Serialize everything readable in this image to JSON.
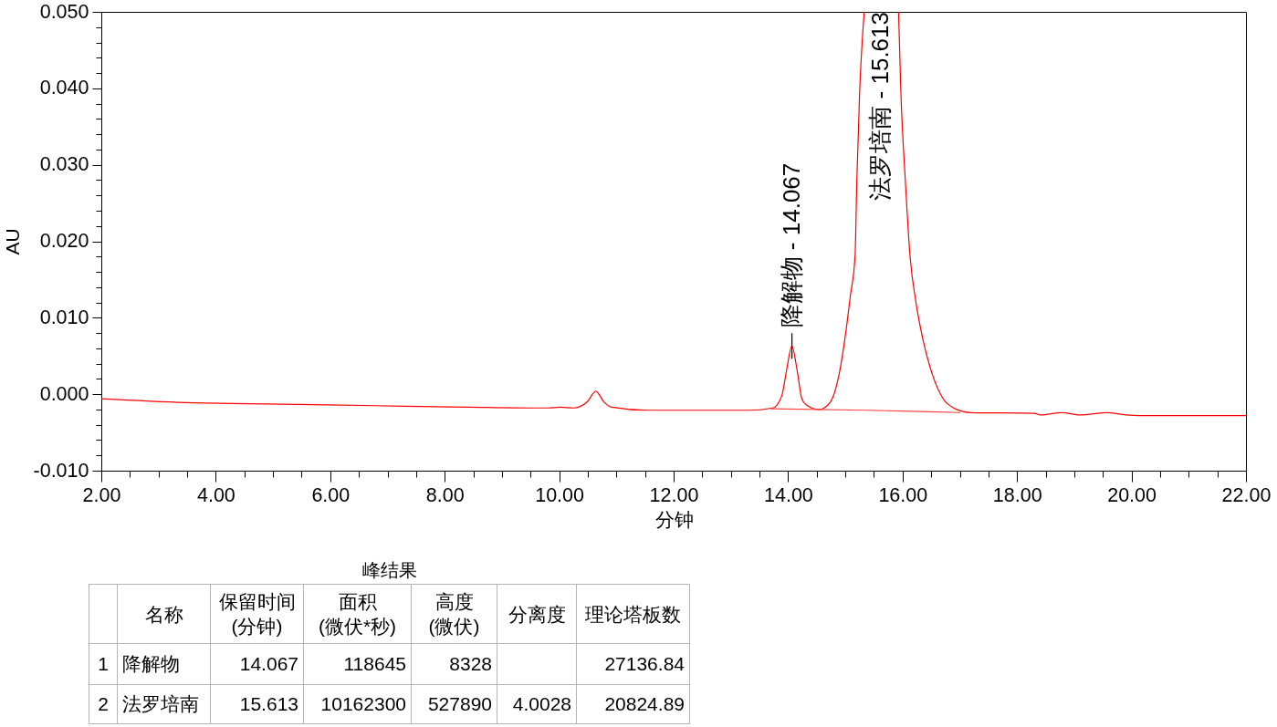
{
  "chart_data": [
    {
      "type": "line",
      "xlabel": "分钟",
      "ylabel": "AU",
      "x": [
        2.0,
        3.47,
        5.13,
        6.77,
        8.43,
        9.53,
        9.8,
        10.02,
        10.25,
        10.49,
        10.64,
        10.78,
        10.92,
        11.55,
        12.46,
        13.31,
        13.73,
        13.89,
        13.97,
        14.067,
        14.16,
        14.24,
        14.32,
        14.54,
        14.74,
        14.88,
        15.01,
        15.09,
        15.17,
        15.2,
        15.25,
        15.3,
        15.33,
        15.613,
        15.93,
        15.97,
        16.05,
        16.13,
        16.23,
        16.36,
        16.52,
        16.71,
        16.92,
        17.19,
        18.3,
        18.41,
        18.78,
        19.1,
        19.58,
        19.9,
        20.33,
        22.0
      ],
      "series": [
        {
          "color": "#ff0000",
          "values": [
            -0.0006,
            -0.0011,
            -0.0013,
            -0.0015,
            -0.0017,
            -0.0018,
            -0.0018,
            -0.0017,
            -0.0018,
            -0.001,
            0.0004,
            -0.001,
            -0.0017,
            -0.0021,
            -0.0021,
            -0.0021,
            -0.0018,
            -0.0002,
            0.003,
            0.0063,
            0.003,
            -0.0006,
            -0.0014,
            -0.002,
            -0.001,
            0.0022,
            0.0082,
            0.013,
            0.0181,
            0.0277,
            0.0396,
            0.0468,
            0.05,
            null,
            0.05,
            0.0396,
            0.0277,
            0.0181,
            0.0122,
            0.007,
            0.0026,
            -0.0006,
            -0.0019,
            -0.0024,
            -0.0025,
            -0.0027,
            -0.0024,
            -0.0027,
            -0.0024,
            -0.0027,
            -0.0028,
            -0.0028
          ]
        },
        {
          "type": "line",
          "color": "#ff4040",
          "x": [
            13.7,
            15.38,
            17.0
          ],
          "values": [
            -0.0019,
            -0.0021,
            -0.0024
          ]
        }
      ],
      "xlim": [
        2,
        22
      ],
      "xticks": [
        {
          "value": 2,
          "label": "2.00"
        },
        {
          "value": 2.5,
          "label": null
        },
        {
          "value": 3,
          "label": null
        },
        {
          "value": 3.5,
          "label": null
        },
        {
          "value": 4,
          "label": "4.00"
        },
        {
          "value": 4.5,
          "label": null
        },
        {
          "value": 5,
          "label": null
        },
        {
          "value": 5.5,
          "label": null
        },
        {
          "value": 6,
          "label": "6.00"
        },
        {
          "value": 6.5,
          "label": null
        },
        {
          "value": 7,
          "label": null
        },
        {
          "value": 7.5,
          "label": null
        },
        {
          "value": 8,
          "label": "8.00"
        },
        {
          "value": 8.5,
          "label": null
        },
        {
          "value": 9,
          "label": null
        },
        {
          "value": 9.5,
          "label": null
        },
        {
          "value": 10,
          "label": "10.00"
        },
        {
          "value": 10.5,
          "label": null
        },
        {
          "value": 11,
          "label": null
        },
        {
          "value": 11.5,
          "label": null
        },
        {
          "value": 12,
          "label": "12.00"
        },
        {
          "value": 12.5,
          "label": null
        },
        {
          "value": 13,
          "label": null
        },
        {
          "value": 13.5,
          "label": null
        },
        {
          "value": 14,
          "label": "14.00"
        },
        {
          "value": 14.5,
          "label": null
        },
        {
          "value": 15,
          "label": null
        },
        {
          "value": 15.5,
          "label": null
        },
        {
          "value": 16,
          "label": "16.00"
        },
        {
          "value": 16.5,
          "label": null
        },
        {
          "value": 17,
          "label": null
        },
        {
          "value": 17.5,
          "label": null
        },
        {
          "value": 18,
          "label": "18.00"
        },
        {
          "value": 18.5,
          "label": null
        },
        {
          "value": 19,
          "label": null
        },
        {
          "value": 19.5,
          "label": null
        },
        {
          "value": 20,
          "label": "20.00"
        },
        {
          "value": 20.5,
          "label": null
        },
        {
          "value": 21,
          "label": null
        },
        {
          "value": 21.5,
          "label": null
        },
        {
          "value": 22,
          "label": "22.00"
        }
      ],
      "ylim": [
        -0.01,
        0.05
      ],
      "yticks": [
        {
          "value": -0.01,
          "label": "-0.010"
        },
        {
          "value": -0.008,
          "label": null
        },
        {
          "value": -0.006,
          "label": null
        },
        {
          "value": -0.004,
          "label": null
        },
        {
          "value": -0.002,
          "label": null
        },
        {
          "value": 0,
          "label": "0.000"
        },
        {
          "value": 0.002,
          "label": null
        },
        {
          "value": 0.004,
          "label": null
        },
        {
          "value": 0.006,
          "label": null
        },
        {
          "value": 0.008,
          "label": null
        },
        {
          "value": 0.01,
          "label": "0.010"
        },
        {
          "value": 0.012,
          "label": null
        },
        {
          "value": 0.014,
          "label": null
        },
        {
          "value": 0.016,
          "label": null
        },
        {
          "value": 0.018,
          "label": null
        },
        {
          "value": 0.02,
          "label": "0.020"
        },
        {
          "value": 0.022,
          "label": null
        },
        {
          "value": 0.024,
          "label": null
        },
        {
          "value": 0.026,
          "label": null
        },
        {
          "value": 0.028,
          "label": null
        },
        {
          "value": 0.03,
          "label": "0.030"
        },
        {
          "value": 0.032,
          "label": null
        },
        {
          "value": 0.034,
          "label": null
        },
        {
          "value": 0.036,
          "label": null
        },
        {
          "value": 0.038,
          "label": null
        },
        {
          "value": 0.04,
          "label": "0.040"
        },
        {
          "value": 0.042,
          "label": null
        },
        {
          "value": 0.044,
          "label": null
        },
        {
          "value": 0.046,
          "label": null
        },
        {
          "value": 0.048,
          "label": null
        },
        {
          "value": 0.05,
          "label": "0.050"
        }
      ],
      "annotations": [
        {
          "text": "降解物 - 14.067",
          "x": 14.067,
          "y": 0.0063
        },
        "法罗培南 - 15.613"
      ]
    },
    {
      "type": "other",
      "title": "峰结果",
      "categories": [
        null,
        "名称",
        "保留时间 (分钟)",
        "面积 (微伏*秒)",
        "高度 (微伏)",
        "分离度",
        "理论塔板数"
      ],
      "y_categories": [
        "1",
        "2"
      ],
      "cell_labels": [
        [
          "降解物",
          "14.067",
          "118645",
          "8328",
          null,
          "27136.84"
        ],
        [
          "法罗培南",
          "15.613",
          "10162300",
          "527890",
          "4.0028",
          "20824.89"
        ]
      ]
    }
  ]
}
